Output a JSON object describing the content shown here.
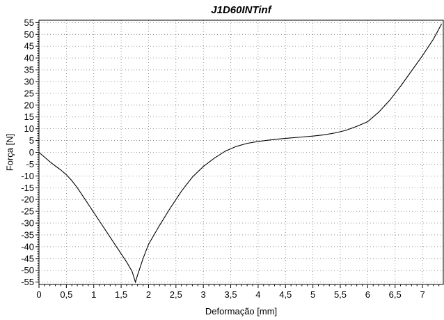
{
  "chart_data": {
    "type": "line",
    "title": "J1D60INTinf",
    "xlabel": "Deformação [mm]",
    "ylabel": "Força [N]",
    "xlim": [
      0,
      7.38
    ],
    "ylim": [
      -56,
      56
    ],
    "grid": true,
    "x_ticks": [
      {
        "value": 0,
        "label": "0"
      },
      {
        "value": 0.5,
        "label": "0,5"
      },
      {
        "value": 1,
        "label": "1"
      },
      {
        "value": 1.5,
        "label": "1,5"
      },
      {
        "value": 2,
        "label": "2"
      },
      {
        "value": 2.5,
        "label": "2,5"
      },
      {
        "value": 3,
        "label": "3"
      },
      {
        "value": 3.5,
        "label": "3,5"
      },
      {
        "value": 4,
        "label": "4"
      },
      {
        "value": 4.5,
        "label": "4,5"
      },
      {
        "value": 5,
        "label": "5"
      },
      {
        "value": 5.5,
        "label": "5,5"
      },
      {
        "value": 6,
        "label": "6"
      },
      {
        "value": 6.5,
        "label": "6,5"
      },
      {
        "value": 7,
        "label": "7"
      }
    ],
    "y_ticks": [
      {
        "value": 55,
        "label": "55"
      },
      {
        "value": 50,
        "label": "50"
      },
      {
        "value": 45,
        "label": "45"
      },
      {
        "value": 40,
        "label": "40"
      },
      {
        "value": 35,
        "label": "35"
      },
      {
        "value": 30,
        "label": "30"
      },
      {
        "value": 25,
        "label": "25"
      },
      {
        "value": 20,
        "label": "20"
      },
      {
        "value": 15,
        "label": "15"
      },
      {
        "value": 10,
        "label": "10"
      },
      {
        "value": 5,
        "label": "5"
      },
      {
        "value": 0,
        "label": "0"
      },
      {
        "value": -5,
        "label": "-5"
      },
      {
        "value": -10,
        "label": "-10"
      },
      {
        "value": -15,
        "label": "-15"
      },
      {
        "value": -20,
        "label": "-20"
      },
      {
        "value": -25,
        "label": "-25"
      },
      {
        "value": -30,
        "label": "-30"
      },
      {
        "value": -35,
        "label": "-35"
      },
      {
        "value": -40,
        "label": "-40"
      },
      {
        "value": -45,
        "label": "-45"
      },
      {
        "value": -50,
        "label": "-50"
      },
      {
        "value": -55,
        "label": "-55"
      }
    ],
    "series": [
      {
        "x": [
          0,
          0.05,
          0.1,
          0.2,
          0.3,
          0.4,
          0.5,
          0.6,
          0.7,
          0.8,
          0.9,
          1.0,
          1.1,
          1.2,
          1.3,
          1.4,
          1.5,
          1.6,
          1.7,
          1.76,
          1.8,
          1.9,
          2.0,
          2.2,
          2.4,
          2.6,
          2.8,
          3.0,
          3.2,
          3.4,
          3.6,
          3.8,
          4.0,
          4.2,
          4.4,
          4.6,
          4.8,
          5.0,
          5.2,
          5.4,
          5.6,
          5.8,
          6.0,
          6.2,
          6.4,
          6.6,
          6.8,
          7.0,
          7.2,
          7.35
        ],
        "y": [
          0,
          -1,
          -2,
          -4,
          -5.8,
          -7.5,
          -9.5,
          -12,
          -15,
          -18.5,
          -22,
          -25.5,
          -29,
          -32.5,
          -36,
          -39.5,
          -43,
          -46.5,
          -50.5,
          -55,
          -52,
          -45,
          -39,
          -31,
          -23.5,
          -16.5,
          -10.5,
          -6,
          -2.5,
          0.5,
          2.5,
          3.8,
          4.6,
          5.2,
          5.7,
          6.1,
          6.5,
          6.9,
          7.4,
          8.2,
          9.3,
          11,
          13,
          17,
          22,
          28,
          34.5,
          41,
          48,
          54.5
        ]
      }
    ]
  }
}
